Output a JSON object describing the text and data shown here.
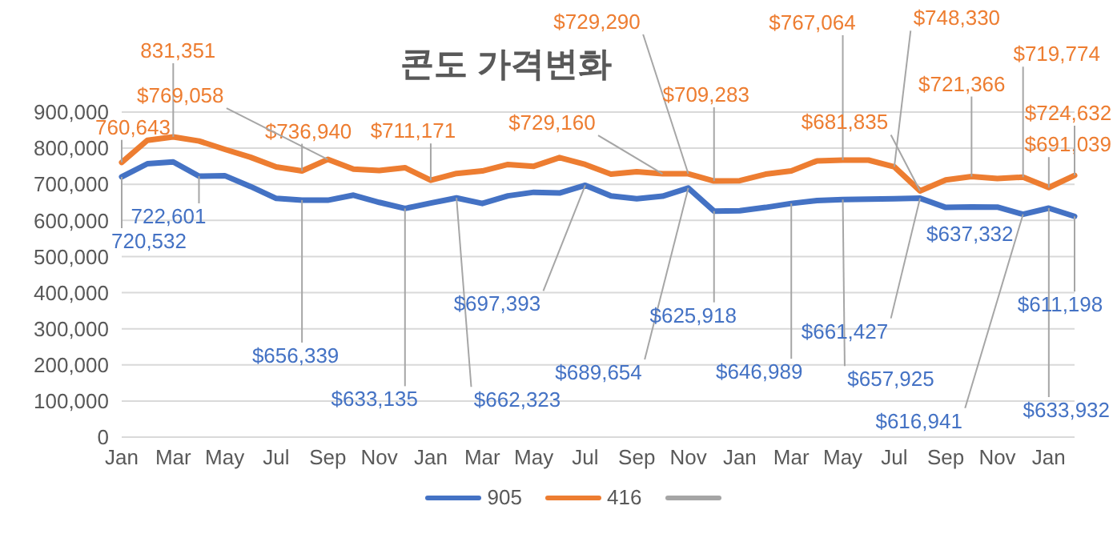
{
  "chart_data": {
    "type": "line",
    "title": "콘도 가격변화",
    "categories": [
      "Jan",
      null,
      "Mar",
      null,
      "May",
      null,
      "Jul",
      null,
      "Sep",
      null,
      "Nov",
      null,
      "Jan",
      null,
      "Mar",
      null,
      "May",
      null,
      "Jul",
      null,
      "Sep",
      null,
      "Nov",
      null,
      "Jan",
      null,
      "Mar",
      null,
      "May",
      null,
      "Jul",
      null,
      "Sep",
      null,
      "Nov",
      null,
      "Jan",
      null
    ],
    "series": [
      {
        "name": "905",
        "color": "#4472c4",
        "values": [
          720532,
          757000,
          762000,
          722601,
          724000,
          694000,
          661000,
          656339,
          656000,
          670000,
          650000,
          633135,
          648000,
          662323,
          647000,
          668000,
          678000,
          676000,
          697393,
          668000,
          660000,
          667000,
          689654,
          625918,
          627000,
          636000,
          646989,
          655000,
          657925,
          659000,
          660000,
          661427,
          636000,
          637332,
          637000,
          616941,
          633932,
          611198
        ],
        "value_labels": [
          "720,532",
          null,
          null,
          "722,601",
          null,
          null,
          null,
          "$656,339",
          null,
          null,
          null,
          "$633,135",
          null,
          "$662,323",
          null,
          null,
          null,
          null,
          "$697,393",
          null,
          null,
          null,
          "$689,654",
          "$625,918",
          null,
          null,
          "$646,989",
          null,
          "$657,925",
          null,
          null,
          "$661,427",
          null,
          "$637,332",
          null,
          "$616,941",
          "$633,932",
          "$611,198"
        ]
      },
      {
        "name": "416",
        "color": "#ed7d31",
        "values": [
          760643,
          822000,
          831351,
          820000,
          797000,
          775000,
          748000,
          736940,
          769058,
          742000,
          738000,
          746000,
          711171,
          730000,
          737000,
          755000,
          750000,
          774000,
          755000,
          728000,
          735000,
          729160,
          729290,
          709283,
          710000,
          728000,
          737000,
          765000,
          767064,
          767000,
          748330,
          681835,
          712000,
          721366,
          716000,
          719774,
          691039,
          724632
        ],
        "value_labels": [
          "760,643",
          null,
          "831,351",
          null,
          null,
          null,
          null,
          "$736,940",
          "$769,058",
          null,
          null,
          null,
          "$711,171",
          null,
          null,
          null,
          null,
          null,
          null,
          null,
          null,
          "$729,160",
          "$729,290",
          "$709,283",
          null,
          null,
          null,
          null,
          "$767,064",
          null,
          "$748,330",
          "$681,835",
          null,
          "$721,366",
          null,
          "$719,774",
          "$691,039",
          "$724,632"
        ]
      },
      {
        "color": "#a5a5a5",
        "values": [
          null,
          null,
          null,
          null,
          null,
          null,
          null,
          null,
          null,
          null,
          null,
          null,
          null,
          null,
          null,
          null,
          null,
          null,
          null,
          null,
          null,
          null,
          null,
          null,
          null,
          null,
          null,
          null,
          null,
          null,
          null,
          null,
          null,
          null,
          null,
          null,
          null,
          null
        ]
      }
    ],
    "ylim": [
      0,
      900000
    ],
    "yticks": [
      0,
      {
        "value": 100000,
        "label": "100,000"
      },
      {
        "value": 200000,
        "label": "200,000"
      },
      {
        "value": 300000,
        "label": "300,000"
      },
      {
        "value": 400000,
        "label": "400,000"
      },
      {
        "value": 500000,
        "label": "500,000"
      },
      {
        "value": 600000,
        "label": "600,000"
      },
      {
        "value": 700000,
        "label": "700,000"
      },
      {
        "value": 800000,
        "label": "800,000"
      },
      {
        "value": 900000,
        "label": "900,000"
      }
    ],
    "grid": "y",
    "legend": "bottom",
    "marker": "none",
    "line_style": "solid"
  }
}
